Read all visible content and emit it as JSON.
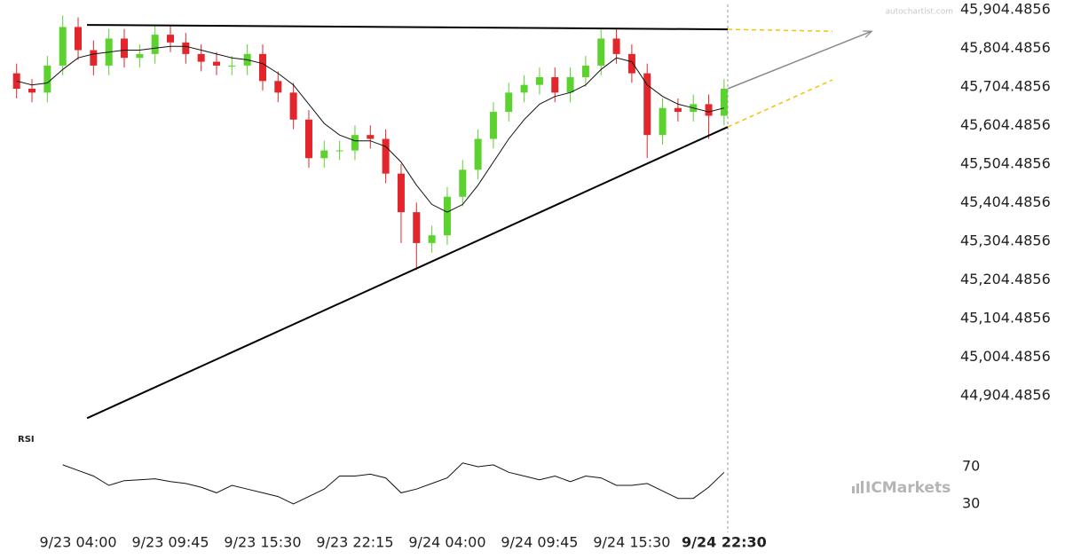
{
  "chart_data": {
    "type": "candlestick",
    "watermark": "autochartist.com",
    "brand": "ICMarkets",
    "categories": [
      null,
      null,
      null,
      null,
      "9/23 04:00",
      null,
      null,
      null,
      null,
      null,
      "9/23 09:45",
      null,
      null,
      null,
      null,
      null,
      "9/23 15:30",
      null,
      null,
      null,
      null,
      null,
      "9/23 22:15",
      null,
      null,
      null,
      null,
      null,
      "9/24 04:00",
      null,
      null,
      null,
      null,
      null,
      "9/24 09:45",
      null,
      null,
      null,
      null,
      null,
      "9/24 15:30",
      null,
      null,
      null,
      null,
      null,
      "9/24 22:30"
    ],
    "open": [
      45740,
      45700,
      45690,
      45760,
      45860,
      45800,
      45760,
      45830,
      45780,
      45790,
      45840,
      45820,
      45790,
      45770,
      45760,
      45760,
      45790,
      45720,
      45690,
      45620,
      45520,
      45540,
      45540,
      45580,
      45570,
      45480,
      45380,
      45300,
      45320,
      45420,
      45490,
      45570,
      45640,
      45690,
      45710,
      45730,
      45690,
      45730,
      45760,
      45830,
      45790,
      45740,
      45580,
      45650,
      45640,
      45660,
      45630
    ],
    "high": [
      45765,
      45725,
      45785,
      45890,
      45885,
      45825,
      45855,
      45855,
      45815,
      45865,
      45865,
      45845,
      45815,
      45795,
      45785,
      45815,
      45815,
      45745,
      45715,
      45645,
      45565,
      45565,
      45605,
      45605,
      45595,
      45505,
      45405,
      45345,
      45445,
      45515,
      45595,
      45665,
      45715,
      45735,
      45755,
      45755,
      45755,
      45785,
      45855,
      45855,
      45815,
      45765,
      45675,
      45675,
      45685,
      45685,
      45725
    ],
    "low": [
      45675,
      45665,
      45665,
      45735,
      45775,
      45735,
      45735,
      45755,
      45755,
      45765,
      45795,
      45765,
      45745,
      45735,
      45735,
      45735,
      45695,
      45665,
      45595,
      45495,
      45495,
      45515,
      45515,
      45545,
      45455,
      45300,
      45230,
      45275,
      45295,
      45395,
      45465,
      45545,
      45615,
      45665,
      45685,
      45665,
      45665,
      45705,
      45735,
      45765,
      45715,
      45520,
      45555,
      45615,
      45615,
      45570,
      45605
    ],
    "close": [
      45700,
      45690,
      45760,
      45860,
      45800,
      45760,
      45830,
      45780,
      45790,
      45840,
      45820,
      45790,
      45770,
      45760,
      45760,
      45790,
      45720,
      45690,
      45620,
      45520,
      45540,
      45540,
      45580,
      45570,
      45480,
      45380,
      45300,
      45320,
      45420,
      45490,
      45570,
      45640,
      45690,
      45710,
      45730,
      45690,
      45730,
      45760,
      45830,
      45790,
      45740,
      45580,
      45650,
      45640,
      45660,
      45630,
      45700
    ],
    "up_color": "#5bd22e",
    "down_color": "#e2262b",
    "moving_average": [
      45720,
      45710,
      45715,
      45750,
      45780,
      45790,
      45795,
      45800,
      45800,
      45805,
      45810,
      45810,
      45800,
      45790,
      45780,
      45775,
      45765,
      45740,
      45710,
      45660,
      45610,
      45580,
      45565,
      45565,
      45550,
      45510,
      45450,
      45400,
      45380,
      45400,
      45450,
      45510,
      45570,
      45620,
      45660,
      45680,
      45690,
      45710,
      45750,
      45780,
      45770,
      45710,
      45680,
      45660,
      45650,
      45640,
      45650
    ],
    "ylim": [
      44826,
      45930
    ],
    "yticks": [
      {
        "value": 45904.4856,
        "label": "45,904.4856"
      },
      {
        "value": 45804.4856,
        "label": "45,804.4856"
      },
      {
        "value": 45704.4856,
        "label": "45,704.4856"
      },
      {
        "value": 45604.4856,
        "label": "45,604.4856"
      },
      {
        "value": 45504.4856,
        "label": "45,504.4856"
      },
      {
        "value": 45404.4856,
        "label": "45,404.4856"
      },
      {
        "value": 45304.4856,
        "label": "45,304.4856"
      },
      {
        "value": 45204.4856,
        "label": "45,204.4856"
      },
      {
        "value": 45104.4856,
        "label": "45,104.4856"
      },
      {
        "value": 45004.4856,
        "label": "45,004.4856"
      },
      {
        "value": 44904.4856,
        "label": "44,904.4856"
      }
    ],
    "trendlines": [
      {
        "x": [
          4.58,
          46.24
        ],
        "y": [
          45865.4,
          45853.9
        ],
        "color": "#000000",
        "style": "solid"
      },
      {
        "x": [
          4.58,
          46.24
        ],
        "y": [
          44846,
          45601
        ],
        "color": "#000000",
        "style": "solid"
      },
      {
        "x": [
          46.24,
          53.05
        ],
        "y": [
          45853.9,
          45849
        ],
        "color": "#f5c400",
        "style": "dashed"
      },
      {
        "x": [
          46.24,
          53.05
        ],
        "y": [
          45601,
          45723
        ],
        "color": "#f5c400",
        "style": "dashed"
      },
      {
        "x": [
          46.24,
          55.6
        ],
        "y": [
          45700,
          45849
        ],
        "color": "#8a8a8a",
        "style": "arrow"
      }
    ],
    "rsi": {
      "label": "RSI",
      "values": [
        null,
        null,
        null,
        72,
        66,
        60,
        50,
        55,
        56,
        57,
        54,
        52,
        48,
        42,
        50,
        46,
        42,
        38,
        30,
        38,
        46,
        60,
        60,
        62,
        58,
        42,
        46,
        52,
        58,
        74,
        70,
        72,
        64,
        60,
        56,
        60,
        54,
        60,
        58,
        50,
        50,
        52,
        44,
        36,
        36,
        48,
        64
      ],
      "ylim": [
        9,
        90
      ],
      "yticks": [
        70,
        30
      ]
    }
  }
}
